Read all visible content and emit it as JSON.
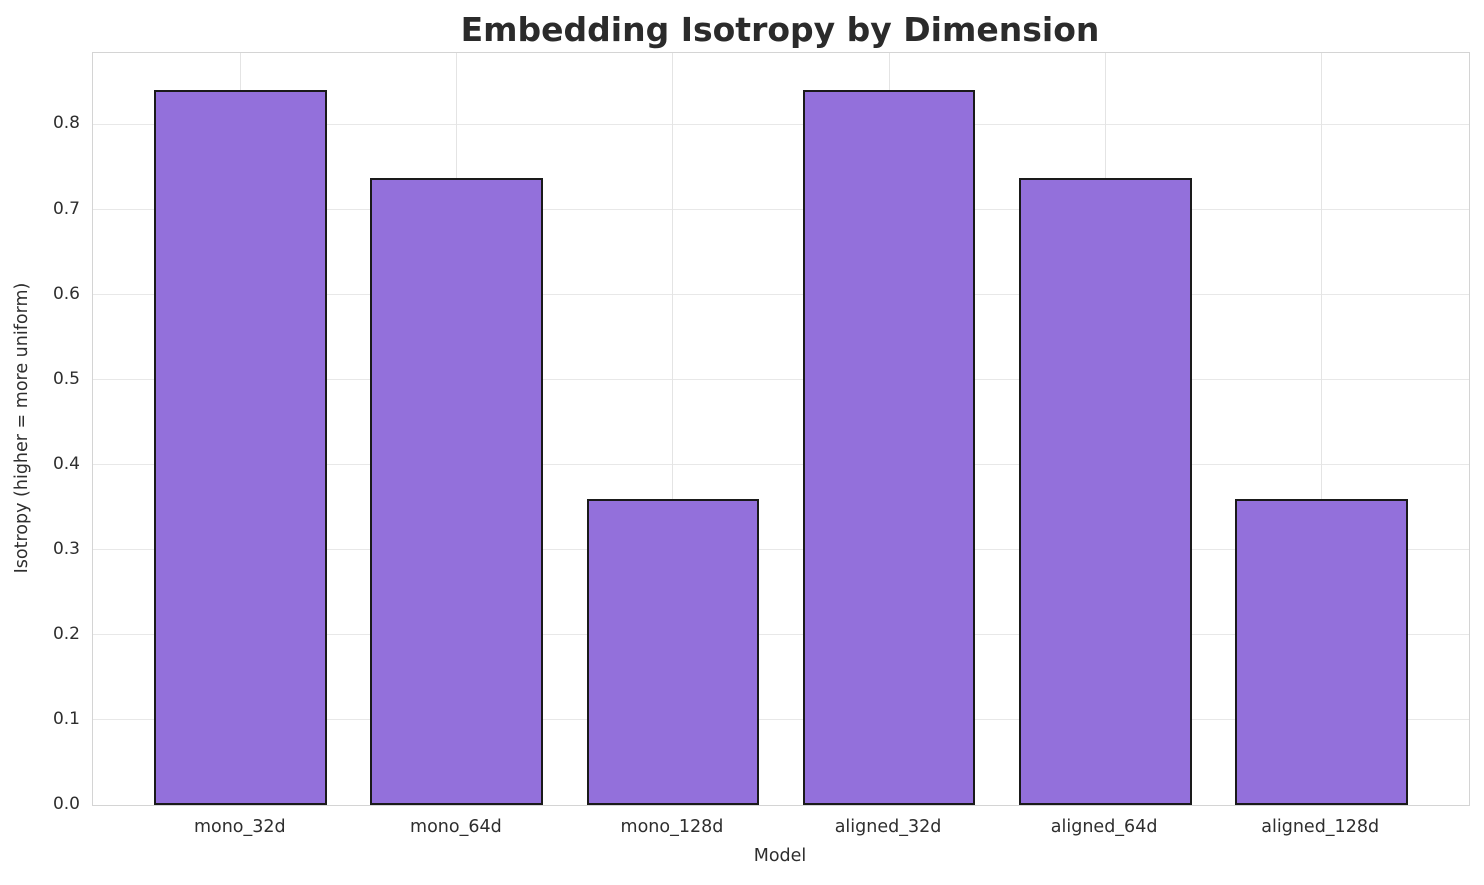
{
  "chart_data": {
    "type": "bar",
    "title": "Embedding Isotropy by Dimension",
    "xlabel": "Model",
    "ylabel": "Isotropy (higher = more uniform)",
    "categories": [
      "mono_32d",
      "mono_64d",
      "mono_128d",
      "aligned_32d",
      "aligned_64d",
      "aligned_128d"
    ],
    "values": [
      0.84,
      0.737,
      0.36,
      0.84,
      0.737,
      0.36
    ],
    "ylim": [
      0,
      0.884
    ],
    "y_ticks": [
      0.0,
      0.1,
      0.2,
      0.3,
      0.4,
      0.5,
      0.6,
      0.7,
      0.8
    ],
    "y_tick_labels": [
      "0.0",
      "0.1",
      "0.2",
      "0.3",
      "0.4",
      "0.5",
      "0.6",
      "0.7",
      "0.8"
    ],
    "grid": "both",
    "legend": "none",
    "colors": {
      "bar_fill": "#9370DB",
      "bar_edge": "#1a1a1a",
      "grid_horizontal": "#e8e8e8",
      "grid_vertical": "#e4e4e4",
      "spine": "#d4d4d4",
      "text": "#2e2e2e",
      "title": "#2b2b2b",
      "background": "#ffffff"
    }
  }
}
